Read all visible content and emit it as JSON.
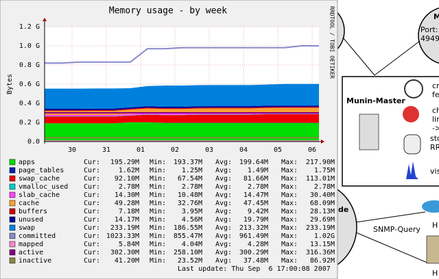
{
  "chart_data": {
    "type": "stacked-area",
    "title": "Memory usage - by week",
    "y_label": "Bytes",
    "side_label": "RRDTOOL / TOBI OETIKER",
    "footer": "Last update: Thu Sep  6 17:00:08 2007",
    "x": [
      0,
      0.5,
      1,
      1.5,
      2,
      2.5,
      3,
      3.5,
      4,
      4.5,
      5,
      5.5,
      6,
      6.5,
      7,
      7.5,
      8
    ],
    "xlim": [
      0,
      8
    ],
    "xticks": [
      {
        "value": 0.8,
        "label": "30"
      },
      {
        "value": 1.8,
        "label": "31"
      },
      {
        "value": 2.8,
        "label": "01"
      },
      {
        "value": 3.8,
        "label": "02"
      },
      {
        "value": 4.8,
        "label": "03"
      },
      {
        "value": 5.8,
        "label": "04"
      },
      {
        "value": 6.8,
        "label": "05"
      },
      {
        "value": 7.8,
        "label": "06"
      }
    ],
    "ylim": [
      0,
      1.2
    ],
    "yticks": [
      {
        "value": 0,
        "label": "0.0"
      },
      {
        "value": 0.2,
        "label": "0.2 G"
      },
      {
        "value": 0.4,
        "label": "0.4 G"
      },
      {
        "value": 0.6,
        "label": "0.6 G"
      },
      {
        "value": 0.8,
        "label": "0.8 G"
      },
      {
        "value": 1.0,
        "label": "1.0 G"
      },
      {
        "value": 1.2,
        "label": "1.2 G"
      }
    ],
    "grid": true,
    "stat_labels": [
      "Cur:",
      "Min:",
      "Avg:",
      "Max:"
    ],
    "series": [
      {
        "name": "apps",
        "kind": "area",
        "color": "#00dd00",
        "stats": [
          "195.29M",
          "193.37M",
          "199.64M",
          "217.90M"
        ],
        "values": [
          0.19,
          0.19,
          0.19,
          0.19,
          0.19,
          0.2,
          0.2,
          0.195,
          0.195,
          0.195,
          0.195,
          0.195,
          0.195,
          0.195,
          0.195,
          0.195,
          0.195
        ]
      },
      {
        "name": "page_tables",
        "kind": "area",
        "color": "#0022aa",
        "stats": [
          "1.62M",
          "1.25M",
          "1.49M",
          "1.75M"
        ],
        "values": [
          0.0015,
          0.0015,
          0.0015,
          0.0015,
          0.0015,
          0.0015,
          0.0015,
          0.0015,
          0.0015,
          0.0015,
          0.0015,
          0.0015,
          0.0015,
          0.0015,
          0.0015,
          0.0015,
          0.0015
        ]
      },
      {
        "name": "swap_cache",
        "kind": "area",
        "color": "#ee0000",
        "stats": [
          "92.10M",
          "67.54M",
          "81.66M",
          "113.01M"
        ],
        "values": [
          0.07,
          0.07,
          0.07,
          0.07,
          0.07,
          0.07,
          0.08,
          0.08,
          0.08,
          0.085,
          0.085,
          0.085,
          0.085,
          0.09,
          0.09,
          0.09,
          0.09
        ]
      },
      {
        "name": "vmalloc_used",
        "kind": "area",
        "color": "#00cccc",
        "stats": [
          "2.78M",
          "2.78M",
          "2.78M",
          "2.78M"
        ],
        "values": [
          0.003,
          0.003,
          0.003,
          0.003,
          0.003,
          0.003,
          0.003,
          0.003,
          0.003,
          0.003,
          0.003,
          0.003,
          0.003,
          0.003,
          0.003,
          0.003,
          0.003
        ]
      },
      {
        "name": "slab_cache",
        "kind": "area",
        "color": "#ff44ff",
        "stats": [
          "14.30M",
          "10.48M",
          "14.47M",
          "30.40M"
        ],
        "values": [
          0.014,
          0.014,
          0.014,
          0.014,
          0.014,
          0.014,
          0.014,
          0.014,
          0.014,
          0.014,
          0.014,
          0.014,
          0.014,
          0.014,
          0.014,
          0.014,
          0.014
        ]
      },
      {
        "name": "cache",
        "kind": "area",
        "color": "#ffa030",
        "stats": [
          "49.28M",
          "32.76M",
          "47.45M",
          "68.09M"
        ],
        "values": [
          0.04,
          0.04,
          0.04,
          0.042,
          0.042,
          0.045,
          0.047,
          0.047,
          0.047,
          0.047,
          0.048,
          0.048,
          0.048,
          0.048,
          0.049,
          0.049,
          0.049
        ]
      },
      {
        "name": "buffers",
        "kind": "area",
        "color": "#cc0000",
        "stats": [
          "7.18M",
          "3.95M",
          "9.42M",
          "28.13M"
        ],
        "values": [
          0.009,
          0.009,
          0.009,
          0.009,
          0.009,
          0.009,
          0.009,
          0.009,
          0.009,
          0.009,
          0.009,
          0.009,
          0.009,
          0.009,
          0.009,
          0.009,
          0.009
        ]
      },
      {
        "name": "unused",
        "kind": "area",
        "color": "#000099",
        "stats": [
          "14.17M",
          "4.56M",
          "19.79M",
          "29.69M"
        ],
        "values": [
          0.015,
          0.015,
          0.015,
          0.015,
          0.015,
          0.015,
          0.015,
          0.015,
          0.015,
          0.015,
          0.015,
          0.015,
          0.015,
          0.015,
          0.015,
          0.015,
          0.015
        ]
      },
      {
        "name": "swap",
        "kind": "area",
        "color": "#0080dd",
        "stats": [
          "233.19M",
          "186.55M",
          "213.32M",
          "233.19M"
        ],
        "values": [
          0.21,
          0.21,
          0.21,
          0.21,
          0.21,
          0.2,
          0.21,
          0.22,
          0.22,
          0.22,
          0.22,
          0.22,
          0.22,
          0.22,
          0.225,
          0.225,
          0.225
        ]
      },
      {
        "name": "committed",
        "kind": "line",
        "color": "#8888cc",
        "stats": [
          "1023.33M",
          "855.47M",
          "961.49M",
          "1.02G"
        ],
        "values": [
          0.82,
          0.82,
          0.83,
          0.83,
          0.83,
          0.83,
          0.97,
          0.97,
          0.98,
          0.98,
          0.98,
          0.98,
          0.98,
          0.98,
          0.98,
          1.0,
          1.0
        ]
      },
      {
        "name": "mapped",
        "kind": "line",
        "color": "#ff88cc",
        "stats": [
          "5.84M",
          "4.04M",
          "4.28M",
          "13.15M"
        ],
        "values": [
          0.005,
          0.005,
          0.005,
          0.005,
          0.005,
          0.005,
          0.005,
          0.005,
          0.005,
          0.005,
          0.005,
          0.005,
          0.005,
          0.005,
          0.005,
          0.005,
          0.005
        ]
      },
      {
        "name": "active",
        "kind": "line",
        "color": "#880088",
        "stats": [
          "302.30M",
          "258.10M",
          "300.29M",
          "316.36M"
        ],
        "values": [
          0.3,
          0.3,
          0.3,
          0.3,
          0.3,
          0.3,
          0.3,
          0.3,
          0.3,
          0.3,
          0.3,
          0.3,
          0.3,
          0.3,
          0.3,
          0.3,
          0.3
        ]
      },
      {
        "name": "inactive",
        "kind": "line",
        "color": "#888844",
        "stats": [
          "41.20M",
          "23.52M",
          "37.48M",
          "86.92M"
        ],
        "values": [
          0.04,
          0.04,
          0.04,
          0.04,
          0.04,
          0.04,
          0.04,
          0.04,
          0.04,
          0.04,
          0.04,
          0.04,
          0.04,
          0.04,
          0.04,
          0.04,
          0.04
        ]
      }
    ]
  },
  "diagram": {
    "node_top": {
      "label": "M",
      "port": "Port:",
      "port_number": "4949"
    },
    "master": {
      "title": "Munin-Master",
      "items": [
        "cr",
        "fe",
        "ch",
        "lin",
        "->",
        "sto",
        "RR",
        "vis"
      ]
    },
    "node_bottom": {
      "label": "de"
    },
    "edge_label": "SNMP-Query",
    "hosts": [
      "H",
      "H"
    ]
  }
}
